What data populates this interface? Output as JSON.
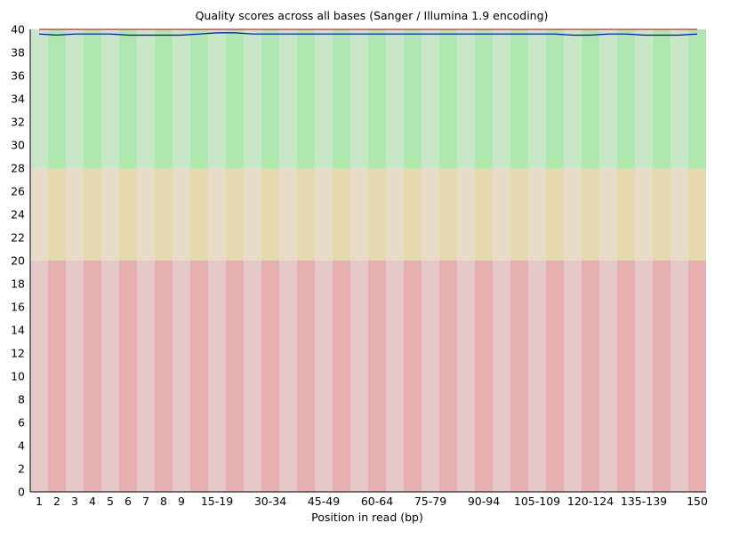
{
  "chart_data": {
    "type": "line",
    "title": "Quality scores across all bases (Sanger / Illumina 1.9 encoding)",
    "xlabel": "Position in read (bp)",
    "ylabel": "",
    "ylim": [
      0,
      40
    ],
    "yticks": [
      0,
      2,
      4,
      6,
      8,
      10,
      12,
      14,
      16,
      18,
      20,
      22,
      24,
      26,
      28,
      30,
      32,
      34,
      36,
      38,
      40
    ],
    "categories": [
      "1",
      "2",
      "3",
      "4",
      "5",
      "6",
      "7",
      "8",
      "9",
      "10-14",
      "15-19",
      "20-24",
      "25-29",
      "30-34",
      "35-39",
      "40-44",
      "45-49",
      "50-54",
      "55-59",
      "60-64",
      "65-69",
      "70-74",
      "75-79",
      "80-84",
      "85-89",
      "90-94",
      "95-99",
      "100-104",
      "105-109",
      "110-114",
      "115-119",
      "120-124",
      "125-129",
      "130-134",
      "135-139",
      "140-144",
      "145-149",
      "150"
    ],
    "xtick_labels_shown": [
      "1",
      "2",
      "3",
      "4",
      "5",
      "6",
      "7",
      "8",
      "9",
      "15-19",
      "30-34",
      "45-49",
      "60-64",
      "75-79",
      "90-94",
      "105-109",
      "120-124",
      "135-139",
      "150"
    ],
    "quality_bands": [
      {
        "from": 28,
        "to": 40,
        "colors": [
          "#c8e6c8",
          "#b0e6b0"
        ]
      },
      {
        "from": 20,
        "to": 28,
        "colors": [
          "#e6dcc8",
          "#e6d8b0"
        ]
      },
      {
        "from": 0,
        "to": 20,
        "colors": [
          "#e6c8c8",
          "#e6b0b0"
        ]
      }
    ],
    "series": [
      {
        "name": "",
        "color": "#0000c8",
        "values": [
          39.6,
          39.5,
          39.6,
          39.6,
          39.6,
          39.5,
          39.5,
          39.5,
          39.5,
          39.6,
          39.7,
          39.7,
          39.6,
          39.6,
          39.6,
          39.6,
          39.6,
          39.6,
          39.6,
          39.6,
          39.6,
          39.6,
          39.6,
          39.6,
          39.6,
          39.6,
          39.6,
          39.6,
          39.6,
          39.6,
          39.5,
          39.5,
          39.6,
          39.6,
          39.5,
          39.5,
          39.5,
          39.6
        ]
      },
      {
        "name": "",
        "color": "#c80000",
        "values": [
          40,
          40,
          40,
          40,
          40,
          40,
          40,
          40,
          40,
          40,
          40,
          40,
          40,
          40,
          40,
          40,
          40,
          40,
          40,
          40,
          40,
          40,
          40,
          40,
          40,
          40,
          40,
          40,
          40,
          40,
          40,
          40,
          40,
          40,
          40,
          40,
          40,
          40
        ]
      }
    ]
  }
}
